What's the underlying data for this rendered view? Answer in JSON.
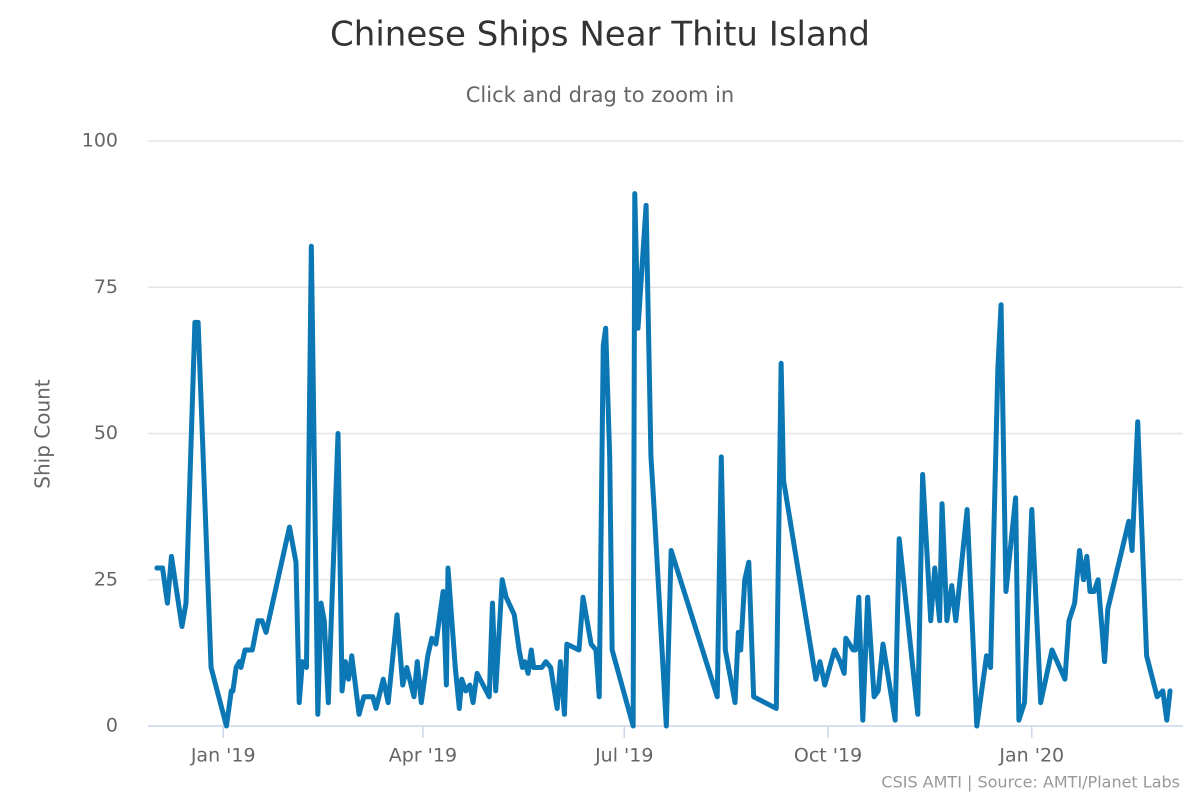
{
  "chart_data": {
    "type": "line",
    "title": "Chinese Ships Near Thitu Island",
    "subtitle": "Click and drag to zoom in",
    "y_label": "Ship Count",
    "credits": "CSIS AMTI | Source: AMTI/Planet Labs",
    "color": "#0b77b4",
    "grid": true,
    "xlim": [
      2018.907,
      2020.187
    ],
    "ylim": [
      0,
      100
    ],
    "yticks": [
      0,
      25,
      50,
      75,
      100
    ],
    "xticks": [
      {
        "value": 2019,
        "label": "Jan '19"
      },
      {
        "value": 2019.247,
        "label": "Apr '19"
      },
      {
        "value": 2019.496,
        "label": "Jul '19"
      },
      {
        "value": 2019.748,
        "label": "Oct '19"
      },
      {
        "value": 2020,
        "label": "Jan '20"
      }
    ],
    "x": [
      2018.918,
      2018.925,
      2018.931,
      2018.936,
      2018.949,
      2018.954,
      2018.965,
      2018.969,
      2018.985,
      2019.004,
      2019.01,
      2019.012,
      2019.016,
      2019.02,
      2019.022,
      2019.027,
      2019.036,
      2019.043,
      2019.048,
      2019.053,
      2019.082,
      2019.09,
      2019.094,
      2019.098,
      2019.103,
      2019.109,
      2019.117,
      2019.121,
      2019.125,
      2019.13,
      2019.142,
      2019.147,
      2019.151,
      2019.155,
      2019.159,
      2019.168,
      2019.174,
      2019.185,
      2019.189,
      2019.198,
      2019.204,
      2019.215,
      2019.222,
      2019.227,
      2019.236,
      2019.24,
      2019.245,
      2019.248,
      2019.253,
      2019.258,
      2019.263,
      2019.272,
      2019.276,
      2019.278,
      2019.287,
      2019.292,
      2019.295,
      2019.3,
      2019.305,
      2019.309,
      2019.314,
      2019.329,
      2019.333,
      2019.337,
      2019.345,
      2019.35,
      2019.36,
      2019.366,
      2019.37,
      2019.373,
      2019.377,
      2019.381,
      2019.384,
      2019.394,
      2019.399,
      2019.405,
      2019.413,
      2019.417,
      2019.422,
      2019.425,
      2019.44,
      2019.445,
      2019.455,
      2019.461,
      2019.465,
      2019.47,
      2019.473,
      2019.478,
      2019.481,
      2019.507,
      2019.509,
      2019.513,
      2019.523,
      2019.529,
      2019.533,
      2019.548,
      2019.554,
      2019.611,
      2019.616,
      2019.621,
      2019.633,
      2019.637,
      2019.64,
      2019.645,
      2019.65,
      2019.656,
      2019.684,
      2019.69,
      2019.693,
      2019.733,
      2019.738,
      2019.744,
      2019.756,
      2019.763,
      2019.768,
      2019.77,
      2019.779,
      2019.782,
      2019.786,
      2019.791,
      2019.797,
      2019.805,
      2019.81,
      2019.816,
      2019.831,
      2019.836,
      2019.859,
      2019.865,
      2019.875,
      2019.88,
      2019.886,
      2019.889,
      2019.895,
      2019.901,
      2019.906,
      2019.92,
      2019.932,
      2019.944,
      2019.949,
      2019.958,
      2019.962,
      2019.968,
      2019.98,
      2019.984,
      2019.991,
      2020.0,
      2020.011,
      2020.025,
      2020.041,
      2020.046,
      2020.053,
      2020.059,
      2020.064,
      2020.068,
      2020.072,
      2020.077,
      2020.082,
      2020.09,
      2020.094,
      2020.12,
      2020.124,
      2020.131,
      2020.142,
      2020.155,
      2020.162,
      2020.167,
      2020.171
    ],
    "values": [
      27,
      27,
      21,
      29,
      17,
      21,
      69,
      69,
      10,
      0,
      6,
      6,
      10,
      11,
      10,
      13,
      13,
      18,
      18,
      16,
      34,
      28,
      4,
      11,
      10,
      82,
      2,
      21,
      18,
      4,
      50,
      6,
      11,
      8,
      12,
      2,
      5,
      5,
      3,
      8,
      4,
      19,
      7,
      10,
      5,
      11,
      4,
      7,
      12,
      15,
      14,
      23,
      7,
      27,
      10,
      3,
      8,
      6,
      7,
      4,
      9,
      5,
      21,
      6,
      25,
      22,
      19,
      13,
      10,
      11,
      9,
      13,
      10,
      10,
      11,
      10,
      3,
      11,
      2,
      14,
      13,
      22,
      14,
      13,
      5,
      65,
      68,
      46,
      13,
      0,
      91,
      68,
      89,
      46,
      37,
      0,
      30,
      5,
      46,
      13,
      4,
      16,
      13,
      25,
      28,
      5,
      3,
      62,
      42,
      8,
      11,
      7,
      13,
      11,
      9,
      15,
      13,
      13,
      22,
      1,
      22,
      5,
      6,
      14,
      1,
      32,
      2,
      43,
      18,
      27,
      18,
      38,
      18,
      24,
      18,
      37,
      0,
      12,
      10,
      61,
      72,
      23,
      39,
      1,
      4,
      37,
      4,
      13,
      8,
      18,
      21,
      30,
      25,
      29,
      23,
      23,
      25,
      11,
      20,
      35,
      30,
      52,
      12,
      5,
      6,
      1,
      6
    ]
  }
}
